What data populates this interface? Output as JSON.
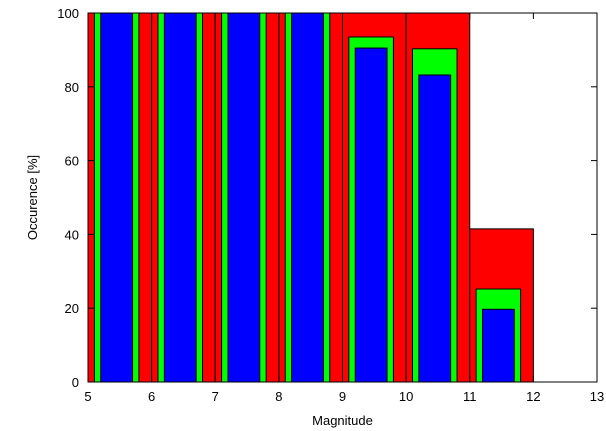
{
  "chart_data": {
    "type": "bar",
    "xlabel": "Magnitude",
    "ylabel": "Occurence [%]",
    "xlim": [
      5,
      13
    ],
    "ylim": [
      0,
      100
    ],
    "xticks": [
      5,
      6,
      7,
      8,
      9,
      10,
      11,
      12,
      13
    ],
    "yticks": [
      0,
      20,
      40,
      60,
      80,
      100
    ],
    "grid": false,
    "legend": "none",
    "colors": {
      "outer": "#ff0000",
      "middle": "#00ff00",
      "inner": "#0000ff",
      "outline": "#000000"
    },
    "series": [
      {
        "color": "#ff0000",
        "bins": [
          {
            "x0": 5.0,
            "x1": 5.0,
            "y": 100
          },
          {
            "x0": 5.0,
            "x1": 6.0,
            "y": 100
          },
          {
            "x0": 6.0,
            "x1": 7.0,
            "y": 100
          },
          {
            "x0": 7.0,
            "x1": 8.0,
            "y": 100
          },
          {
            "x0": 8.0,
            "x1": 9.0,
            "y": 100
          },
          {
            "x0": 9.0,
            "x1": 10.0,
            "y": 100
          },
          {
            "x0": 10.0,
            "x1": 11.0,
            "y": 100
          },
          {
            "x0": 11.0,
            "x1": 12.0,
            "y": 41.5
          },
          {
            "x0": 12.0,
            "x1": 13.0,
            "y": 0
          }
        ]
      },
      {
        "color": "#00ff00",
        "bins": [
          {
            "x0": 5.1,
            "x1": 5.8,
            "y": 100
          },
          {
            "x0": 6.1,
            "x1": 6.8,
            "y": 100
          },
          {
            "x0": 7.1,
            "x1": 7.8,
            "y": 100
          },
          {
            "x0": 8.1,
            "x1": 8.8,
            "y": 100
          },
          {
            "x0": 9.1,
            "x1": 9.8,
            "y": 93.5
          },
          {
            "x0": 10.1,
            "x1": 10.8,
            "y": 90.3
          },
          {
            "x0": 11.1,
            "x1": 11.8,
            "y": 25.2
          }
        ]
      },
      {
        "color": "#0000ff",
        "bins": [
          {
            "x0": 5.2,
            "x1": 5.7,
            "y": 100
          },
          {
            "x0": 6.2,
            "x1": 6.7,
            "y": 100
          },
          {
            "x0": 7.2,
            "x1": 7.7,
            "y": 100
          },
          {
            "x0": 8.2,
            "x1": 8.7,
            "y": 100
          },
          {
            "x0": 9.2,
            "x1": 9.7,
            "y": 90.5
          },
          {
            "x0": 10.2,
            "x1": 10.7,
            "y": 83.2
          },
          {
            "x0": 11.2,
            "x1": 11.7,
            "y": 19.7
          }
        ]
      }
    ]
  }
}
